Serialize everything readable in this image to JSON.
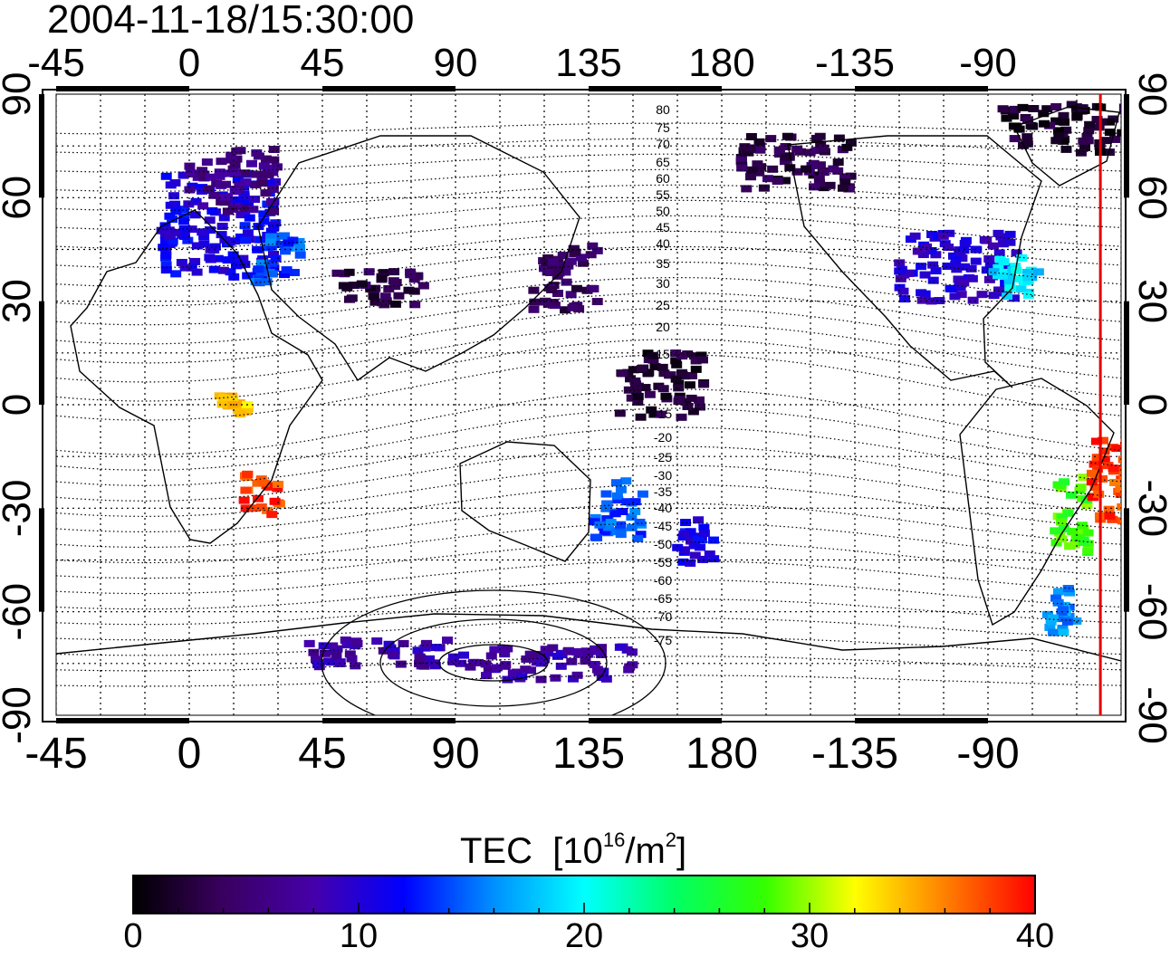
{
  "title": "2004-11-18/15:30:00",
  "map": {
    "projection": "equirectangular",
    "center_longitude": 135,
    "top_lon_labels": [
      "0",
      "45",
      "90",
      "135",
      "180",
      "-135",
      "-90",
      "-45"
    ],
    "bottom_lon_labels": [
      "0",
      "45",
      "90",
      "135",
      "180",
      "-135",
      "-90",
      "-45"
    ],
    "lat_labels": [
      "90",
      "60",
      "30",
      "0",
      "-30",
      "-60",
      "-90"
    ],
    "magnetic_lat_labels_north": [
      "80",
      "75",
      "70",
      "65",
      "60",
      "55",
      "50",
      "45",
      "40",
      "35",
      "30",
      "25",
      "20",
      "15"
    ],
    "magnetic_lat_labels_south": [
      "-15",
      "-20",
      "-25",
      "-30",
      "-35",
      "-40",
      "-45",
      "-50",
      "-55",
      "-60",
      "-65",
      "-70",
      "-75"
    ],
    "terminator_longitude": -52,
    "terminator_color": "#e60000",
    "tec_patches": [
      {
        "lon": 10,
        "lat": 52,
        "w": 40,
        "h": 30,
        "tec": 11
      },
      {
        "lon": 15,
        "lat": 65,
        "w": 30,
        "h": 18,
        "tec": 6
      },
      {
        "lon": 30,
        "lat": 42,
        "w": 16,
        "h": 14,
        "tec": 14
      },
      {
        "lon": 65,
        "lat": 34,
        "w": 30,
        "h": 10,
        "tec": 3
      },
      {
        "lon": 127,
        "lat": 36,
        "w": 22,
        "h": 20,
        "tec": 4
      },
      {
        "lon": 160,
        "lat": 5,
        "w": 30,
        "h": 20,
        "tec": 2
      },
      {
        "lon": -155,
        "lat": 70,
        "w": 40,
        "h": 16,
        "tec": 3
      },
      {
        "lon": -100,
        "lat": 40,
        "w": 40,
        "h": 20,
        "tec": 10
      },
      {
        "lon": -80,
        "lat": 37,
        "w": 16,
        "h": 12,
        "tec": 19
      },
      {
        "lon": -60,
        "lat": 80,
        "w": 50,
        "h": 14,
        "tec": 2
      },
      {
        "lon": -62,
        "lat": -32,
        "w": 12,
        "h": 22,
        "tec": 28
      },
      {
        "lon": -48,
        "lat": -22,
        "w": 14,
        "h": 24,
        "tec": 38
      },
      {
        "lon": 25,
        "lat": -26,
        "w": 14,
        "h": 12,
        "tec": 38
      },
      {
        "lon": 15,
        "lat": 0,
        "w": 10,
        "h": 6,
        "tec": 34
      },
      {
        "lon": 145,
        "lat": -30,
        "w": 18,
        "h": 18,
        "tec": 14
      },
      {
        "lon": 172,
        "lat": -40,
        "w": 14,
        "h": 14,
        "tec": 11
      },
      {
        "lon": 120,
        "lat": -75,
        "w": 60,
        "h": 10,
        "tec": 8
      },
      {
        "lon": 65,
        "lat": -72,
        "w": 50,
        "h": 8,
        "tec": 8
      },
      {
        "lon": -65,
        "lat": -60,
        "w": 10,
        "h": 14,
        "tec": 16
      }
    ]
  },
  "colorbar": {
    "label": "TEC",
    "unit_base": "[10",
    "unit_exp": "16",
    "unit_mid": "/m",
    "unit_exp2": "2",
    "unit_end": "]",
    "ticks": [
      "0",
      "10",
      "20",
      "30",
      "40"
    ],
    "min": 0,
    "max": 40,
    "stops": [
      "#000000",
      "#3a0060",
      "#4600aa",
      "#0000ff",
      "#0090ff",
      "#00ffff",
      "#00ff66",
      "#33ff00",
      "#ffff00",
      "#ff8000",
      "#ff0000"
    ]
  }
}
